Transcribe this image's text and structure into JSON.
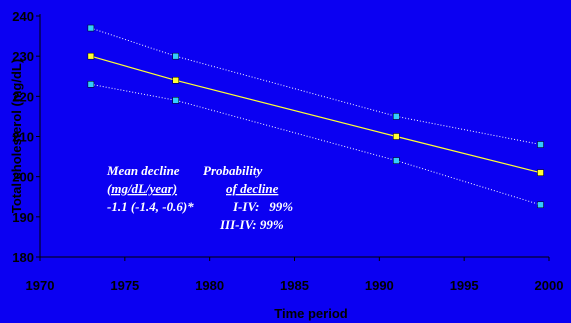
{
  "chart_data": {
    "type": "line",
    "xlabel": "Time period",
    "ylabel": "Total cholesterol (mg/dL)",
    "xlim": [
      1970,
      2000
    ],
    "ylim": [
      180,
      240
    ],
    "xticks": [
      "1970",
      "1975",
      "1980",
      "1985",
      "1990",
      "1995",
      "2000"
    ],
    "yticks": [
      "180",
      "190",
      "200",
      "210",
      "220",
      "230",
      "240"
    ],
    "grid": false,
    "series": [
      {
        "role": "mean",
        "color": "#ffff33",
        "marker_color": "#ffff33",
        "line_style": "solid",
        "x": [
          1973,
          1978,
          1991,
          1999.5
        ],
        "y": [
          230,
          224,
          210,
          201
        ]
      },
      {
        "role": "upper",
        "color": "#ffffff",
        "marker_color": "#33ccff",
        "line_style": "dotted",
        "x": [
          1973,
          1978,
          1991,
          1999.5
        ],
        "y": [
          237,
          230,
          215,
          208
        ]
      },
      {
        "role": "lower",
        "color": "#ffffff",
        "marker_color": "#33ccff",
        "line_style": "dotted",
        "x": [
          1973,
          1978,
          1991,
          1999.5
        ],
        "y": [
          223,
          219,
          204,
          193
        ]
      }
    ],
    "annotations": {
      "line1a": "Mean decline",
      "line1b": "Probability",
      "line2a": "(mg/dL/year)",
      "line2b": "of decline",
      "line3a": "-1.1 (-1.4, -0.6)*",
      "line3b": "I-IV:   99%",
      "line4": "III-IV: 99%"
    }
  },
  "colors": {
    "background": "#0b00f2",
    "axis": "#000000"
  }
}
